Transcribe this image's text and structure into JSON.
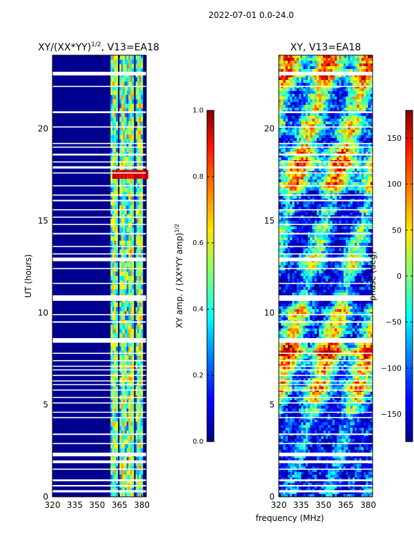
{
  "figure": {
    "suptitle": "2022-07-01 0.0-24.0",
    "shared_xlabel": "frequency (MHz)"
  },
  "chart_data": [
    {
      "type": "heatmap",
      "title": "XY/(XX*YY)^1/2, V13=EA18",
      "title_main": "XY/(XX*YY)",
      "title_exp": "1/2",
      "title_suffix": ", V13=EA18",
      "xlabel": "",
      "ylabel": "UT (hours)",
      "xlim": [
        320,
        383
      ],
      "ylim": [
        0,
        24
      ],
      "xticks": [
        320,
        335,
        350,
        365,
        380
      ],
      "yticks": [
        0,
        5,
        10,
        15,
        20
      ],
      "colorbar": {
        "label": "XY amp. / (XX*YY amp)^1/2",
        "label_main": "XY amp. / (XX*YY amp)",
        "label_exp": "1/2",
        "range": [
          0.0,
          1.0
        ],
        "ticks": [
          "0.0",
          "0.2",
          "0.4",
          "0.6",
          "0.8",
          "1.0"
        ],
        "colormap": "jet"
      },
      "bright_bands_MHz": [
        361,
        367,
        372,
        378
      ],
      "flare_hours": [
        17.3,
        17.8
      ]
    },
    {
      "type": "heatmap",
      "title": "XY, V13=EA18",
      "xlabel": "frequency (MHz)",
      "ylabel": "",
      "xlim": [
        320,
        383
      ],
      "ylim": [
        0,
        24
      ],
      "xticks": [
        320,
        335,
        350,
        365,
        380
      ],
      "yticks": [
        0,
        5,
        10,
        15,
        20
      ],
      "colorbar": {
        "label": "phase (deg)",
        "range": [
          -180,
          180
        ],
        "ticks": [
          "150",
          "100",
          "50",
          "0",
          "−50",
          "−100",
          "−150"
        ],
        "tick_values": [
          150,
          100,
          50,
          0,
          -50,
          -100,
          -150
        ],
        "colormap": "jet"
      }
    }
  ],
  "gap_hours": [
    0.3,
    0.6,
    0.9,
    1.5,
    1.9,
    2.3,
    2.9,
    3.4,
    4.3,
    4.6,
    5.1,
    5.4,
    5.8,
    6.1,
    6.3,
    6.6,
    6.9,
    7.1,
    7.4,
    7.8,
    8.5,
    9.5,
    9.9,
    10.8,
    11.6,
    12.4,
    12.9,
    13.2,
    13.6,
    14.3,
    14.8,
    15.2,
    15.6,
    16.1,
    16.4,
    16.9,
    17.6,
    17.9,
    18.2,
    18.6,
    19.0,
    19.2,
    20.1,
    20.9,
    22.3,
    23.0
  ],
  "gap_widths_hours": [
    0.12,
    0.08,
    0.1,
    0.06,
    0.15,
    0.2,
    0.06,
    0.08,
    0.06,
    0.05,
    0.06,
    0.05,
    0.06,
    0.05,
    0.05,
    0.06,
    0.05,
    0.05,
    0.06,
    0.06,
    0.25,
    0.08,
    0.06,
    0.3,
    0.06,
    0.06,
    0.2,
    0.06,
    0.06,
    0.08,
    0.06,
    0.06,
    0.06,
    0.08,
    0.06,
    0.06,
    0.06,
    0.12,
    0.06,
    0.1,
    0.06,
    0.06,
    0.06,
    0.1,
    0.06,
    0.2
  ]
}
